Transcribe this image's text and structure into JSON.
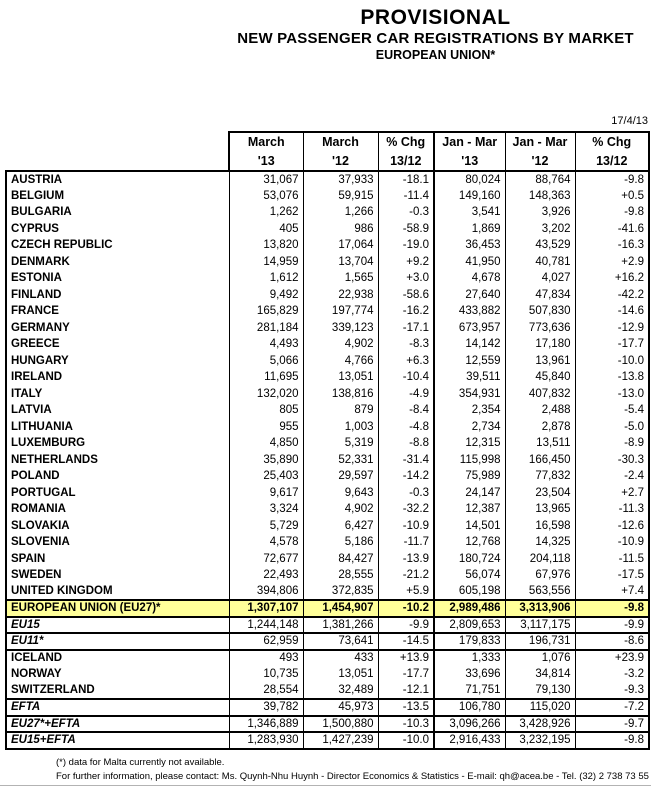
{
  "page": {
    "title": "PROVISIONAL",
    "subtitle": "NEW PASSENGER CAR REGISTRATIONS BY MARKET",
    "region": "EUROPEAN UNION*",
    "date": "17/4/13",
    "footnote": "(*) data for Malta currently not available.",
    "contact": "For further information, please contact:  Ms. Quynh-Nhu Huynh - Director Economics & Statistics - E-mail: qh@acea.be - Tel. (32) 2 738 73 55"
  },
  "colors": {
    "highlight_row": "#FFFF99",
    "border": "#000000",
    "footer_rule": "#B3B3B3"
  },
  "table": {
    "columns": [
      {
        "line1": "March",
        "line2": "'13"
      },
      {
        "line1": "March",
        "line2": "'12"
      },
      {
        "line1": "% Chg",
        "line2": "13/12"
      },
      {
        "line1": "Jan - Mar",
        "line2": "'13"
      },
      {
        "line1": "Jan - Mar",
        "line2": "'12"
      },
      {
        "line1": "% Chg",
        "line2": "13/12"
      }
    ],
    "rows": [
      {
        "label": "AUSTRIA",
        "values": [
          "31,067",
          "37,933",
          "-18.1",
          "80,024",
          "88,764",
          "-9.8"
        ],
        "kind": "country",
        "rule_above": true
      },
      {
        "label": "BELGIUM",
        "values": [
          "53,076",
          "59,915",
          "-11.4",
          "149,160",
          "148,363",
          "+0.5"
        ],
        "kind": "country"
      },
      {
        "label": "BULGARIA",
        "values": [
          "1,262",
          "1,266",
          "-0.3",
          "3,541",
          "3,926",
          "-9.8"
        ],
        "kind": "country"
      },
      {
        "label": "CYPRUS",
        "values": [
          "405",
          "986",
          "-58.9",
          "1,869",
          "3,202",
          "-41.6"
        ],
        "kind": "country"
      },
      {
        "label": "CZECH REPUBLIC",
        "values": [
          "13,820",
          "17,064",
          "-19.0",
          "36,453",
          "43,529",
          "-16.3"
        ],
        "kind": "country"
      },
      {
        "label": "DENMARK",
        "values": [
          "14,959",
          "13,704",
          "+9.2",
          "41,950",
          "40,781",
          "+2.9"
        ],
        "kind": "country"
      },
      {
        "label": "ESTONIA",
        "values": [
          "1,612",
          "1,565",
          "+3.0",
          "4,678",
          "4,027",
          "+16.2"
        ],
        "kind": "country"
      },
      {
        "label": "FINLAND",
        "values": [
          "9,492",
          "22,938",
          "-58.6",
          "27,640",
          "47,834",
          "-42.2"
        ],
        "kind": "country"
      },
      {
        "label": "FRANCE",
        "values": [
          "165,829",
          "197,774",
          "-16.2",
          "433,882",
          "507,830",
          "-14.6"
        ],
        "kind": "country"
      },
      {
        "label": "GERMANY",
        "values": [
          "281,184",
          "339,123",
          "-17.1",
          "673,957",
          "773,636",
          "-12.9"
        ],
        "kind": "country"
      },
      {
        "label": "GREECE",
        "values": [
          "4,493",
          "4,902",
          "-8.3",
          "14,142",
          "17,180",
          "-17.7"
        ],
        "kind": "country"
      },
      {
        "label": "HUNGARY",
        "values": [
          "5,066",
          "4,766",
          "+6.3",
          "12,559",
          "13,961",
          "-10.0"
        ],
        "kind": "country"
      },
      {
        "label": "IRELAND",
        "values": [
          "11,695",
          "13,051",
          "-10.4",
          "39,511",
          "45,840",
          "-13.8"
        ],
        "kind": "country"
      },
      {
        "label": "ITALY",
        "values": [
          "132,020",
          "138,816",
          "-4.9",
          "354,931",
          "407,832",
          "-13.0"
        ],
        "kind": "country"
      },
      {
        "label": "LATVIA",
        "values": [
          "805",
          "879",
          "-8.4",
          "2,354",
          "2,488",
          "-5.4"
        ],
        "kind": "country"
      },
      {
        "label": "LITHUANIA",
        "values": [
          "955",
          "1,003",
          "-4.8",
          "2,734",
          "2,878",
          "-5.0"
        ],
        "kind": "country"
      },
      {
        "label": "LUXEMBURG",
        "values": [
          "4,850",
          "5,319",
          "-8.8",
          "12,315",
          "13,511",
          "-8.9"
        ],
        "kind": "country"
      },
      {
        "label": "NETHERLANDS",
        "values": [
          "35,890",
          "52,331",
          "-31.4",
          "115,998",
          "166,450",
          "-30.3"
        ],
        "kind": "country"
      },
      {
        "label": "POLAND",
        "values": [
          "25,403",
          "29,597",
          "-14.2",
          "75,989",
          "77,832",
          "-2.4"
        ],
        "kind": "country"
      },
      {
        "label": "PORTUGAL",
        "values": [
          "9,617",
          "9,643",
          "-0.3",
          "24,147",
          "23,504",
          "+2.7"
        ],
        "kind": "country"
      },
      {
        "label": "ROMANIA",
        "values": [
          "3,324",
          "4,902",
          "-32.2",
          "12,387",
          "13,965",
          "-11.3"
        ],
        "kind": "country"
      },
      {
        "label": "SLOVAKIA",
        "values": [
          "5,729",
          "6,427",
          "-10.9",
          "14,501",
          "16,598",
          "-12.6"
        ],
        "kind": "country"
      },
      {
        "label": "SLOVENIA",
        "values": [
          "4,578",
          "5,186",
          "-11.7",
          "12,768",
          "14,325",
          "-10.9"
        ],
        "kind": "country"
      },
      {
        "label": "SPAIN",
        "values": [
          "72,677",
          "84,427",
          "-13.9",
          "180,724",
          "204,118",
          "-11.5"
        ],
        "kind": "country"
      },
      {
        "label": "SWEDEN",
        "values": [
          "22,493",
          "28,555",
          "-21.2",
          "56,074",
          "67,976",
          "-17.5"
        ],
        "kind": "country"
      },
      {
        "label": "UNITED KINGDOM",
        "values": [
          "394,806",
          "372,835",
          "+5.9",
          "605,198",
          "563,556",
          "+7.4"
        ],
        "kind": "country"
      },
      {
        "label": "EUROPEAN UNION (EU27)*",
        "values": [
          "1,307,107",
          "1,454,907",
          "-10.2",
          "2,989,486",
          "3,313,906",
          "-9.8"
        ],
        "kind": "total",
        "rule_above": true,
        "rule_below": true
      },
      {
        "label": "EU15",
        "values": [
          "1,244,148",
          "1,381,266",
          "-9.9",
          "2,809,653",
          "3,117,175",
          "-9.9"
        ],
        "kind": "aggregate",
        "rule_below": true
      },
      {
        "label": "EU11*",
        "values": [
          "62,959",
          "73,641",
          "-14.5",
          "179,833",
          "196,731",
          "-8.6"
        ],
        "kind": "aggregate",
        "rule_below": true
      },
      {
        "label": "ICELAND",
        "values": [
          "493",
          "433",
          "+13.9",
          "1,333",
          "1,076",
          "+23.9"
        ],
        "kind": "country"
      },
      {
        "label": "NORWAY",
        "values": [
          "10,735",
          "13,051",
          "-17.7",
          "33,696",
          "34,814",
          "-3.2"
        ],
        "kind": "country"
      },
      {
        "label": "SWITZERLAND",
        "values": [
          "28,554",
          "32,489",
          "-12.1",
          "71,751",
          "79,130",
          "-9.3"
        ],
        "kind": "country",
        "rule_below": true
      },
      {
        "label": "EFTA",
        "values": [
          "39,782",
          "45,973",
          "-13.5",
          "106,780",
          "115,020",
          "-7.2"
        ],
        "kind": "aggregate",
        "rule_below": true
      },
      {
        "label": "EU27*+EFTA",
        "values": [
          "1,346,889",
          "1,500,880",
          "-10.3",
          "3,096,266",
          "3,428,926",
          "-9.7"
        ],
        "kind": "aggregate",
        "rule_below": true
      },
      {
        "label": "EU15+EFTA",
        "values": [
          "1,283,930",
          "1,427,239",
          "-10.0",
          "2,916,433",
          "3,232,195",
          "-9.8"
        ],
        "kind": "aggregate",
        "rule_below": true
      }
    ]
  }
}
